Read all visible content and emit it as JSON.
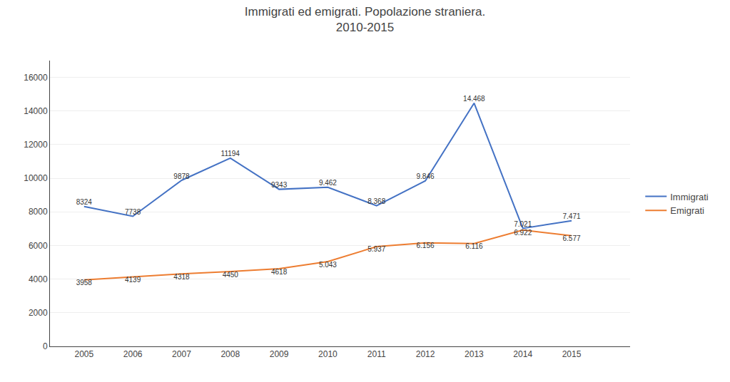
{
  "chart_data": {
    "type": "line",
    "title": "Immigrati ed emigrati. Popolazione straniera.\n2010-2015",
    "x": [
      2005,
      2006,
      2007,
      2008,
      2009,
      2010,
      2011,
      2012,
      2013,
      2014,
      2015
    ],
    "series": [
      {
        "name": "Immigrati",
        "color": "#4472C4",
        "values": [
          8324,
          7738,
          9878,
          11194,
          9343,
          9462,
          8368,
          9846,
          14468,
          7021,
          7471
        ],
        "value_labels": [
          "8324",
          "7738",
          "9878",
          "11194",
          "9343",
          "9.462",
          "8.368",
          "9.846",
          "14.468",
          "7.021",
          "7.471"
        ]
      },
      {
        "name": "Emigrati",
        "color": "#ED7D31",
        "values": [
          3958,
          4139,
          4318,
          4450,
          4618,
          5043,
          5937,
          6156,
          6116,
          6922,
          6577
        ],
        "value_labels": [
          "3958",
          "4139",
          "4318",
          "4450",
          "4618",
          "5.043",
          "5.937",
          "6.156",
          "6.116",
          "6.922",
          "6.577"
        ]
      }
    ],
    "xlim": [
      2004.3,
      2016.2
    ],
    "xticks": [
      2005,
      2006,
      2007,
      2008,
      2009,
      2010,
      2011,
      2012,
      2013,
      2014,
      2015
    ],
    "ylim": [
      0,
      17000
    ],
    "yticks": [
      0,
      2000,
      4000,
      6000,
      8000,
      10000,
      12000,
      14000,
      16000
    ],
    "grid": true,
    "legend": "right",
    "data_labels": true
  }
}
